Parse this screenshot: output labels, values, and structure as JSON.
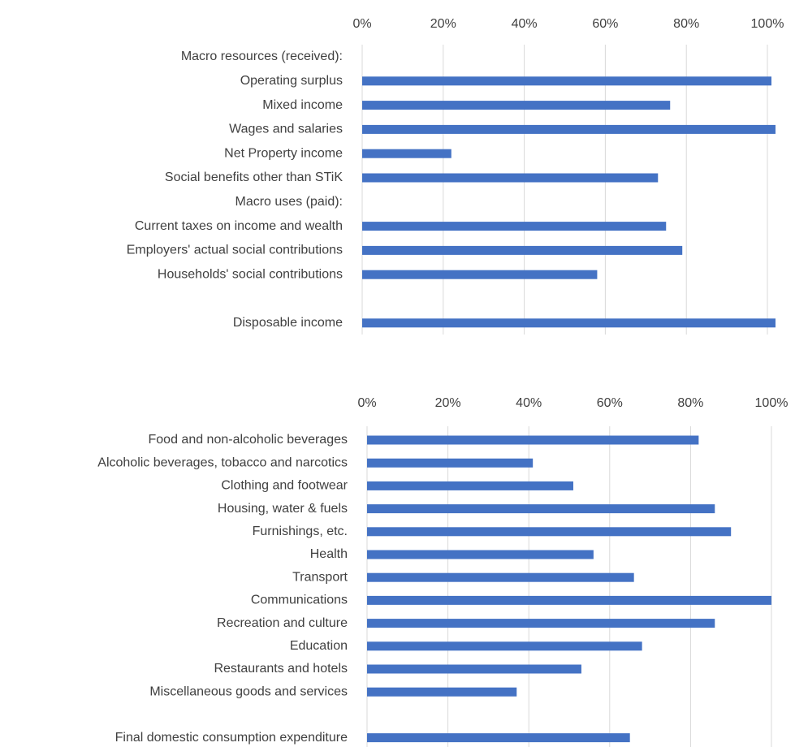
{
  "chart_data": [
    {
      "type": "barh",
      "color": "#4472c4",
      "categories": [
        "Macro resources (received):",
        "Operating surplus",
        "Mixed income",
        "Wages and salaries",
        "Net Property income",
        "Social benefits other than STiK",
        "Macro uses (paid):",
        "Current taxes on income and wealth",
        "Employers' actual social contributions",
        "Households' social contributions",
        null,
        "Disposable income"
      ],
      "values": [
        null,
        101,
        76,
        102,
        22,
        73,
        null,
        75,
        79,
        58,
        null,
        102
      ],
      "xlim": [
        0,
        100
      ],
      "xticks": [
        {
          "value": 0,
          "label": "0%"
        },
        {
          "value": 20,
          "label": "20%"
        },
        {
          "value": 40,
          "label": "40%"
        },
        {
          "value": 60,
          "label": "60%"
        },
        {
          "value": 80,
          "label": "80%"
        },
        {
          "value": 100,
          "label": "100%"
        }
      ],
      "grid": true
    },
    {
      "type": "barh",
      "color": "#4472c4",
      "categories": [
        "Food and non-alcoholic beverages",
        "Alcoholic beverages, tobacco and narcotics",
        "Clothing and footwear",
        "Housing, water &  fuels",
        "Furnishings, etc.",
        "Health",
        "Transport",
        "Communications",
        "Recreation and culture",
        "Education",
        "Restaurants and hotels",
        "Miscellaneous goods and services",
        null,
        "Final domestic consumption expenditure"
      ],
      "values": [
        82,
        41,
        51,
        86,
        90,
        56,
        66,
        100,
        86,
        68,
        53,
        37,
        null,
        65
      ],
      "xlim": [
        0,
        100
      ],
      "xticks": [
        {
          "value": 0,
          "label": "0%"
        },
        {
          "value": 20,
          "label": "20%"
        },
        {
          "value": 40,
          "label": "40%"
        },
        {
          "value": 60,
          "label": "60%"
        },
        {
          "value": 80,
          "label": "80%"
        },
        {
          "value": 100,
          "label": "100%"
        }
      ],
      "grid": true
    }
  ]
}
